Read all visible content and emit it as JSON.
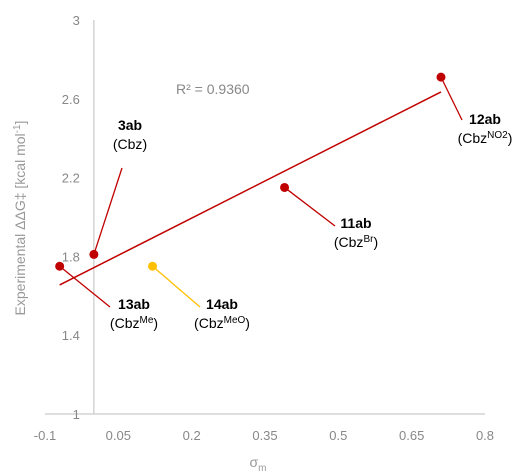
{
  "chart_data": {
    "type": "scatter",
    "title": "",
    "xlabel": "σ",
    "xlabel_sub": "m",
    "ylabel": "Experimental ΔΔG‡  [kcal mol",
    "ylabel_sup": "-1",
    "ylabel_end": "]",
    "xlim": [
      -0.1,
      0.8
    ],
    "ylim": [
      1,
      3
    ],
    "x_ticks": [
      "-0.1",
      "0.05",
      "0.2",
      "0.35",
      "0.5",
      "0.65",
      "0.8"
    ],
    "y_ticks": [
      "1",
      "1.4",
      "1.8",
      "2.2",
      "2.6",
      "3"
    ],
    "grid": false,
    "points": [
      {
        "x": 0.0,
        "y": 1.81,
        "id": "3ab",
        "label_base": "(Cbz",
        "label_sup": "",
        "label_end": ")",
        "color": "#c00000"
      },
      {
        "x": 0.71,
        "y": 2.71,
        "id": "12ab",
        "label_base": "(Cbz",
        "label_sup": "NO2",
        "label_end": ")",
        "color": "#c00000"
      },
      {
        "x": 0.39,
        "y": 2.15,
        "id": "11ab",
        "label_base": "(Cbz",
        "label_sup": "Br",
        "label_end": ")",
        "color": "#c00000"
      },
      {
        "x": -0.07,
        "y": 1.75,
        "id": "13ab",
        "label_base": "(Cbz",
        "label_sup": "Me",
        "label_end": ")",
        "color": "#c00000"
      },
      {
        "x": 0.12,
        "y": 1.75,
        "id": "14ab",
        "label_base": "(Cbz",
        "label_sup": "MeO",
        "label_end": ")",
        "color": "#ffc000"
      }
    ],
    "trendline": {
      "x1": -0.07,
      "y1": 1.655,
      "x2": 0.71,
      "y2": 2.635,
      "color": "#c00000"
    },
    "r_squared_label": "R² = 0.9360"
  }
}
